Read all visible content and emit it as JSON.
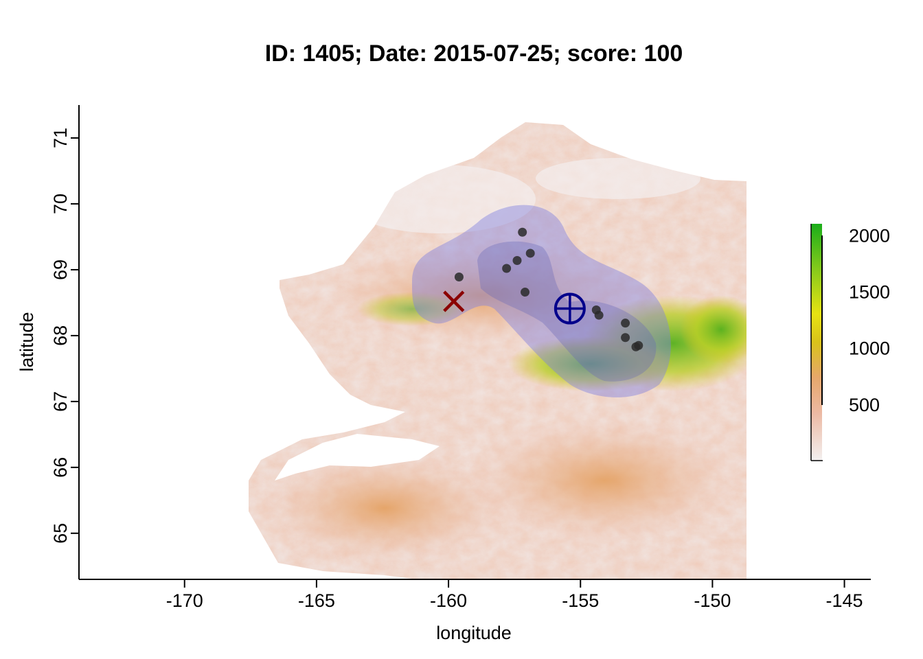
{
  "title": "ID: 1405;  Date: 2015-07-25;  score: 100",
  "axes": {
    "xlabel": "longitude",
    "ylabel": "latitude",
    "xlim": [
      -174,
      -144
    ],
    "ylim": [
      64.3,
      71.5
    ],
    "xticks": [
      {
        "value": -170,
        "label": "-170"
      },
      {
        "value": -165,
        "label": "-165"
      },
      {
        "value": -160,
        "label": "-160"
      },
      {
        "value": -155,
        "label": "-155"
      },
      {
        "value": -150,
        "label": "-150"
      },
      {
        "value": -145,
        "label": "-145"
      }
    ],
    "yticks": [
      {
        "value": 65,
        "label": "65"
      },
      {
        "value": 66,
        "label": "66"
      },
      {
        "value": 67,
        "label": "67"
      },
      {
        "value": 68,
        "label": "68"
      },
      {
        "value": 69,
        "label": "69"
      },
      {
        "value": 70,
        "label": "70"
      },
      {
        "value": 71,
        "label": "71"
      }
    ]
  },
  "chart_data": {
    "type": "scatter",
    "title": "ID: 1405;  Date: 2015-07-25;  score: 100",
    "xlabel": "longitude",
    "ylabel": "latitude",
    "xlim": [
      -174,
      -144
    ],
    "ylim": [
      64.3,
      71.5
    ],
    "points": [
      {
        "x": -157.2,
        "y": 69.57
      },
      {
        "x": -156.9,
        "y": 69.25
      },
      {
        "x": -157.4,
        "y": 69.14
      },
      {
        "x": -157.8,
        "y": 69.02
      },
      {
        "x": -159.6,
        "y": 68.89
      },
      {
        "x": -157.1,
        "y": 68.66
      },
      {
        "x": -154.4,
        "y": 68.39
      },
      {
        "x": -154.3,
        "y": 68.31
      },
      {
        "x": -153.3,
        "y": 68.19
      },
      {
        "x": -153.3,
        "y": 67.97
      },
      {
        "x": -152.9,
        "y": 67.83
      },
      {
        "x": -152.8,
        "y": 67.85
      }
    ],
    "markers": {
      "x_mark": {
        "lon": -159.8,
        "lat": 68.52,
        "color": "#8b0000"
      },
      "circle_plus": {
        "lon": -155.4,
        "lat": 68.41,
        "color": "#00008b"
      }
    },
    "point_color": "#2a2a2a",
    "region_color": "#8080e0",
    "colorbar": {
      "range": [
        0,
        2100
      ],
      "ticks": [
        {
          "value": 500,
          "label": "500"
        },
        {
          "value": 1000,
          "label": "1000"
        },
        {
          "value": 1500,
          "label": "1500"
        },
        {
          "value": 2000,
          "label": "2000"
        }
      ],
      "colors": [
        "#f3f0f0",
        "#ecb9a3",
        "#e6a76b",
        "#d9c21a",
        "#e7e312",
        "#8acb1b",
        "#1aad1a"
      ]
    }
  }
}
